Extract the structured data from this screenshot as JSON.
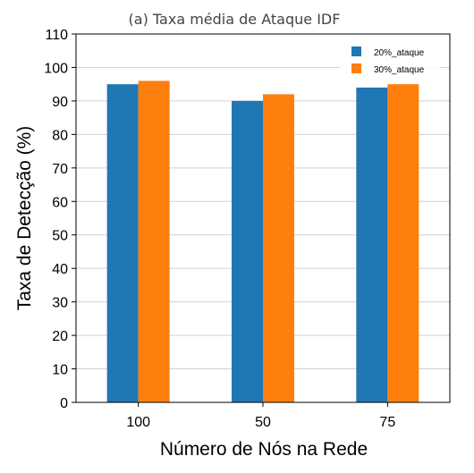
{
  "chart_data": {
    "type": "bar",
    "title": "(a) Taxa média de Ataque IDF",
    "xlabel": "Número de Nós na Rede",
    "ylabel": "Taxa de Detecção (%)",
    "categories": [
      "100",
      "50",
      "75"
    ],
    "series": [
      {
        "name": "20%_ataque",
        "values": [
          95,
          90,
          94
        ],
        "color": "#1f77b4"
      },
      {
        "name": "30%_ataque",
        "values": [
          96,
          92,
          95
        ],
        "color": "#ff7f0e"
      }
    ],
    "ylim": [
      0,
      110
    ],
    "yticks": [
      "0",
      "10",
      "20",
      "30",
      "40",
      "50",
      "60",
      "70",
      "80",
      "90",
      "100",
      "110"
    ],
    "grid": true,
    "legend_position": "top-right"
  }
}
